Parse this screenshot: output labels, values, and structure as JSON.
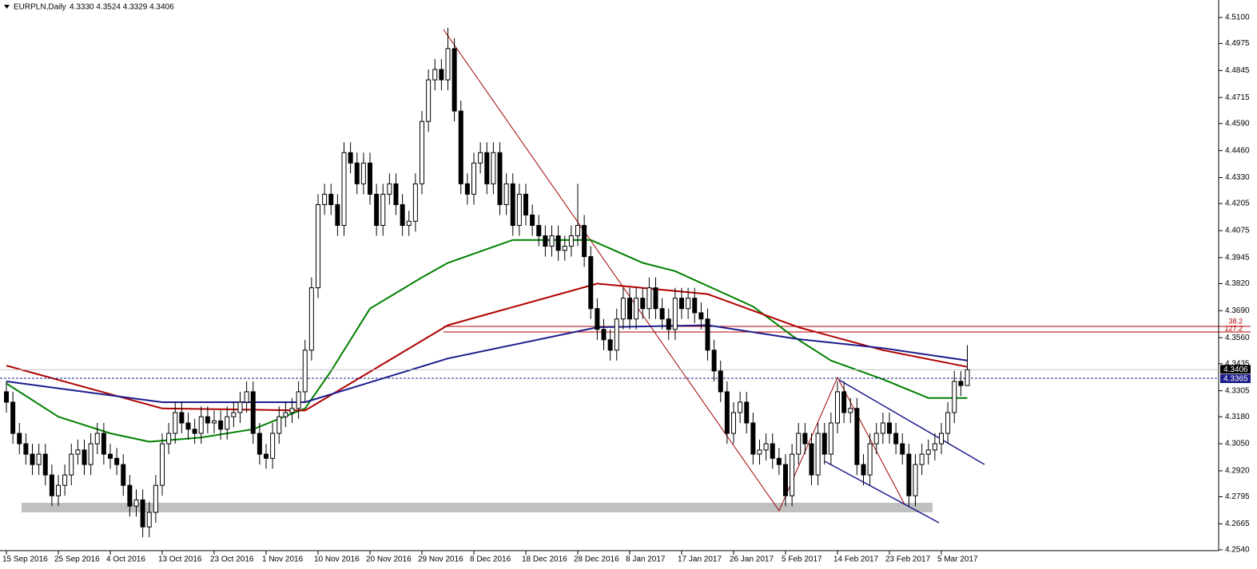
{
  "chart_data": {
    "type": "candlestick",
    "title": "EURPLN,Daily",
    "subtitle": "4.3330 4.3524 4.3329 4.3406",
    "ylim": [
      4.2536,
      4.5184
    ],
    "yticks": [
      {
        "value": 4.254,
        "label": "4.2540"
      },
      4.2665,
      {
        "value": 4.2795,
        "label": "4.2795"
      },
      {
        "value": 4.292,
        "label": "4.2920"
      },
      {
        "value": 4.305,
        "label": "4.3050"
      },
      {
        "value": 4.318,
        "label": "4.3180"
      },
      4.3305,
      4.3435,
      {
        "value": 4.356,
        "label": "4.3560"
      },
      {
        "value": 4.369,
        "label": "4.3690"
      },
      {
        "value": 4.382,
        "label": "4.3820"
      },
      4.3945,
      4.4075,
      4.4205,
      {
        "value": 4.433,
        "label": "4.4330"
      },
      {
        "value": 4.446,
        "label": "4.4460"
      },
      {
        "value": 4.459,
        "label": "4.4590"
      },
      4.4715,
      4.4845,
      4.4975,
      {
        "value": 4.51,
        "label": "4.5100"
      }
    ],
    "xticks": [
      {
        "value": 0,
        "label": "15 Sep 2016"
      },
      {
        "value": 8,
        "label": "25 Sep 2016"
      },
      {
        "value": 16,
        "label": "4 Oct 2016"
      },
      {
        "value": 24,
        "label": "13 Oct 2016"
      },
      {
        "value": 32,
        "label": "23 Oct 2016"
      },
      {
        "value": 40,
        "label": "1 Nov 2016"
      },
      {
        "value": 48,
        "label": "10 Nov 2016"
      },
      {
        "value": 56,
        "label": "20 Nov 2016"
      },
      {
        "value": 64,
        "label": "29 Nov 2016"
      },
      {
        "value": 72,
        "label": "8 Dec 2016"
      },
      {
        "value": 80,
        "label": "18 Dec 2016"
      },
      {
        "value": 88,
        "label": "28 Dec 2016"
      },
      {
        "value": 96,
        "label": "8 Jan 2017"
      },
      {
        "value": 104,
        "label": "17 Jan 2017"
      },
      {
        "value": 112,
        "label": "26 Jan 2017"
      },
      {
        "value": 120,
        "label": "5 Feb 2017"
      },
      {
        "value": 128,
        "label": "14 Feb 2017"
      },
      {
        "value": 136,
        "label": "23 Feb 2017"
      },
      {
        "value": 144,
        "label": "5 Mar 2017"
      }
    ],
    "open": [
      4.33,
      4.325,
      4.31,
      4.305,
      4.3,
      4.295,
      4.3,
      4.29,
      4.28,
      4.285,
      4.29,
      4.3,
      4.302,
      4.295,
      4.305,
      4.31,
      4.3,
      4.298,
      4.295,
      4.285,
      4.275,
      4.278,
      4.265,
      4.272,
      4.285,
      4.305,
      4.31,
      4.32,
      4.315,
      4.312,
      4.31,
      4.318,
      4.315,
      4.316,
      4.312,
      4.318,
      4.32,
      4.325,
      4.33,
      4.31,
      4.3,
      4.298,
      4.31,
      4.318,
      4.32,
      4.322,
      4.33,
      4.35,
      4.38,
      4.42,
      4.425,
      4.42,
      4.41,
      4.445,
      4.44,
      4.43,
      4.44,
      4.425,
      4.41,
      4.425,
      4.43,
      4.42,
      4.41,
      4.412,
      4.43,
      4.46,
      4.48,
      4.485,
      4.48,
      4.495,
      4.465,
      4.43,
      4.425,
      4.44,
      4.445,
      4.43,
      4.445,
      4.42,
      4.43,
      4.41,
      4.425,
      4.415,
      4.41,
      4.405,
      4.4,
      4.405,
      4.398,
      4.4,
      4.405,
      4.41,
      4.395,
      4.37,
      4.36,
      4.355,
      4.35,
      4.365,
      4.375,
      4.365,
      4.375,
      4.37,
      4.38,
      4.37,
      4.365,
      4.36,
      4.375,
      4.37,
      4.375,
      4.368,
      4.365,
      4.35,
      4.34,
      4.33,
      4.31,
      4.32,
      4.325,
      4.315,
      4.3,
      4.302,
      4.305,
      4.298,
      4.295,
      4.28,
      4.3,
      4.31,
      4.305,
      4.29,
      4.31,
      4.3,
      4.315,
      4.33,
      4.32,
      4.322,
      4.295,
      4.29,
      4.305,
      4.31,
      4.315,
      4.31,
      4.305,
      4.3,
      4.28,
      4.295,
      4.3,
      4.302,
      4.305,
      4.31,
      4.32,
      4.335,
      4.333
    ],
    "high": [
      4.335,
      4.33,
      4.315,
      4.31,
      4.305,
      4.305,
      4.305,
      4.295,
      4.29,
      4.295,
      4.305,
      4.307,
      4.307,
      4.31,
      4.315,
      4.315,
      4.305,
      4.303,
      4.3,
      4.29,
      4.283,
      4.283,
      4.277,
      4.29,
      4.31,
      4.315,
      4.325,
      4.325,
      4.32,
      4.317,
      4.323,
      4.323,
      4.321,
      4.321,
      4.323,
      4.325,
      4.33,
      4.335,
      4.335,
      4.315,
      4.305,
      4.315,
      4.323,
      4.325,
      4.327,
      4.335,
      4.355,
      4.385,
      4.425,
      4.43,
      4.43,
      4.425,
      4.45,
      4.45,
      4.445,
      4.445,
      4.445,
      4.43,
      4.43,
      4.435,
      4.435,
      4.425,
      4.417,
      4.435,
      4.465,
      4.485,
      4.49,
      4.49,
      4.505,
      4.5,
      4.47,
      4.435,
      4.445,
      4.45,
      4.45,
      4.45,
      4.45,
      4.435,
      4.435,
      4.43,
      4.43,
      4.42,
      4.415,
      4.41,
      4.41,
      4.41,
      4.405,
      4.41,
      4.43,
      4.415,
      4.4,
      4.375,
      4.365,
      4.36,
      4.37,
      4.38,
      4.38,
      4.38,
      4.38,
      4.385,
      4.385,
      4.375,
      4.37,
      4.38,
      4.38,
      4.38,
      4.38,
      4.373,
      4.37,
      4.355,
      4.345,
      4.335,
      4.325,
      4.33,
      4.33,
      4.32,
      4.307,
      4.31,
      4.31,
      4.303,
      4.3,
      4.305,
      4.315,
      4.315,
      4.31,
      4.315,
      4.315,
      4.32,
      4.335,
      4.335,
      4.327,
      4.327,
      4.3,
      4.31,
      4.315,
      4.32,
      4.32,
      4.315,
      4.31,
      4.305,
      4.3,
      4.305,
      4.307,
      4.31,
      4.315,
      4.325,
      4.34,
      4.34,
      4.3524
    ],
    "low": [
      4.32,
      4.305,
      4.3,
      4.295,
      4.29,
      4.29,
      4.285,
      4.275,
      4.275,
      4.28,
      4.285,
      4.295,
      4.29,
      4.29,
      4.3,
      4.295,
      4.293,
      4.29,
      4.28,
      4.27,
      4.27,
      4.26,
      4.26,
      4.267,
      4.28,
      4.3,
      4.305,
      4.31,
      4.307,
      4.305,
      4.305,
      4.31,
      4.31,
      4.307,
      4.307,
      4.313,
      4.315,
      4.32,
      4.305,
      4.295,
      4.293,
      4.293,
      4.305,
      4.313,
      4.315,
      4.317,
      4.325,
      4.345,
      4.375,
      4.415,
      4.415,
      4.405,
      4.405,
      4.435,
      4.425,
      4.425,
      4.42,
      4.405,
      4.405,
      4.42,
      4.415,
      4.405,
      4.405,
      4.407,
      4.425,
      4.455,
      4.475,
      4.475,
      4.475,
      4.46,
      4.425,
      4.42,
      4.42,
      4.435,
      4.425,
      4.425,
      4.415,
      4.415,
      4.405,
      4.405,
      4.41,
      4.405,
      4.4,
      4.395,
      4.395,
      4.393,
      4.393,
      4.395,
      4.4,
      4.39,
      4.365,
      4.355,
      4.35,
      4.345,
      4.345,
      4.36,
      4.36,
      4.36,
      4.365,
      4.365,
      4.365,
      4.36,
      4.355,
      4.355,
      4.365,
      4.365,
      4.363,
      4.36,
      4.345,
      4.335,
      4.325,
      4.305,
      4.305,
      4.315,
      4.31,
      4.295,
      4.295,
      4.297,
      4.293,
      4.29,
      4.275,
      4.275,
      4.295,
      4.3,
      4.285,
      4.285,
      4.295,
      4.295,
      4.31,
      4.315,
      4.315,
      4.29,
      4.285,
      4.285,
      4.3,
      4.305,
      4.305,
      4.3,
      4.295,
      4.275,
      4.275,
      4.29,
      4.295,
      4.297,
      4.3,
      4.305,
      4.315,
      4.328,
      4.3329
    ],
    "close": [
      4.325,
      4.31,
      4.305,
      4.3,
      4.295,
      4.3,
      4.29,
      4.28,
      4.285,
      4.29,
      4.3,
      4.302,
      4.295,
      4.305,
      4.31,
      4.3,
      4.298,
      4.295,
      4.285,
      4.275,
      4.278,
      4.265,
      4.272,
      4.285,
      4.305,
      4.31,
      4.32,
      4.315,
      4.312,
      4.31,
      4.318,
      4.315,
      4.316,
      4.312,
      4.318,
      4.32,
      4.325,
      4.33,
      4.31,
      4.3,
      4.298,
      4.31,
      4.318,
      4.32,
      4.322,
      4.33,
      4.35,
      4.38,
      4.42,
      4.425,
      4.42,
      4.41,
      4.445,
      4.44,
      4.43,
      4.44,
      4.425,
      4.41,
      4.425,
      4.43,
      4.42,
      4.41,
      4.412,
      4.43,
      4.46,
      4.48,
      4.485,
      4.48,
      4.495,
      4.465,
      4.43,
      4.425,
      4.44,
      4.445,
      4.43,
      4.445,
      4.42,
      4.43,
      4.41,
      4.425,
      4.415,
      4.41,
      4.405,
      4.4,
      4.405,
      4.398,
      4.4,
      4.405,
      4.41,
      4.395,
      4.37,
      4.36,
      4.355,
      4.35,
      4.365,
      4.375,
      4.365,
      4.375,
      4.37,
      4.38,
      4.37,
      4.365,
      4.36,
      4.375,
      4.37,
      4.375,
      4.368,
      4.365,
      4.35,
      4.34,
      4.33,
      4.31,
      4.32,
      4.325,
      4.315,
      4.3,
      4.302,
      4.305,
      4.298,
      4.295,
      4.28,
      4.3,
      4.31,
      4.305,
      4.29,
      4.31,
      4.3,
      4.315,
      4.33,
      4.32,
      4.322,
      4.295,
      4.29,
      4.305,
      4.31,
      4.315,
      4.31,
      4.305,
      4.3,
      4.28,
      4.295,
      4.3,
      4.302,
      4.305,
      4.31,
      4.32,
      4.335,
      4.333,
      4.3406
    ],
    "up_color": "#ffffff",
    "down_color": "#000000",
    "series": [
      {
        "color": "#008000",
        "x": [
          0,
          8,
          16,
          22,
          30,
          38,
          46,
          50,
          56,
          64,
          68,
          78,
          90,
          98,
          103,
          115,
          121,
          127,
          135,
          142,
          148
        ],
        "values": [
          4.334,
          4.318,
          4.31,
          4.306,
          4.308,
          4.312,
          4.322,
          4.34,
          4.37,
          4.385,
          4.392,
          4.403,
          4.403,
          4.392,
          4.388,
          4.371,
          4.357,
          4.345,
          4.336,
          4.327,
          4.327
        ]
      },
      {
        "color": "#b00000",
        "x": [
          0,
          24,
          46,
          68,
          91,
          108,
          122,
          135,
          148
        ],
        "values": [
          4.3426,
          4.322,
          4.321,
          4.362,
          4.382,
          4.377,
          4.361,
          4.35,
          4.342
        ]
      },
      {
        "color": "#1c1c8c",
        "x": [
          0,
          24,
          46,
          68,
          91,
          108,
          122,
          135,
          148
        ],
        "values": [
          4.335,
          4.325,
          4.325,
          4.346,
          4.361,
          4.362,
          4.3553,
          4.351,
          4.345
        ]
      }
    ],
    "annotations": [
      "38.2",
      "127.2"
    ],
    "price_labels": [
      4.3406,
      4.3365
    ]
  }
}
